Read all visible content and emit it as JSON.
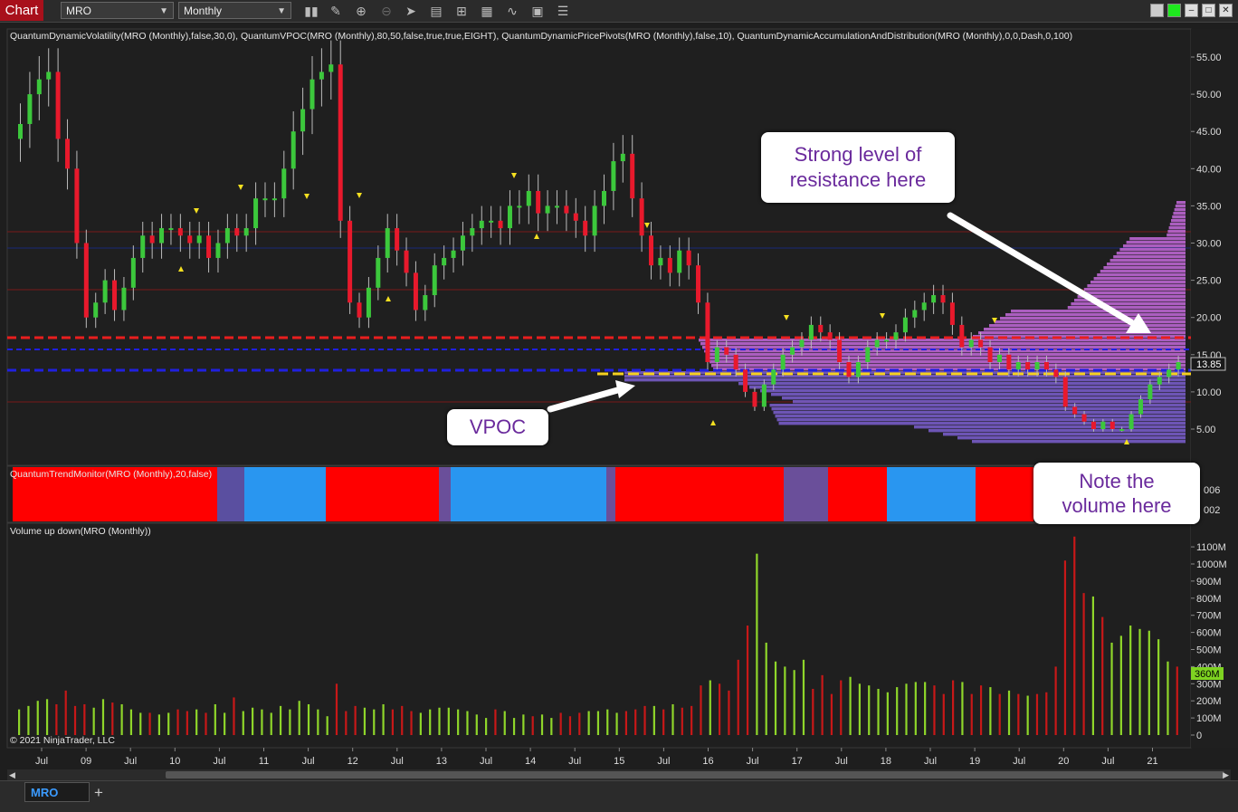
{
  "toolbar": {
    "chart_tab": "Chart",
    "instrument": "MRO",
    "period": "Monthly",
    "icons": [
      "bar-type-icon",
      "draw-pencil-icon",
      "zoom-in-icon",
      "zoom-out-icon",
      "pointer-icon",
      "data-box-icon",
      "properties-icon",
      "strategies-icon",
      "indicators-icon",
      "templates-icon",
      "list-icon"
    ]
  },
  "price_panel": {
    "indicator_label": "QuantumDynamicVolatility(MRO (Monthly),false,30,0), QuantumVPOC(MRO (Monthly),80,50,false,true,true,EIGHT), QuantumDynamicPricePivots(MRO (Monthly),false,10), QuantumDynamicAccumulationAndDistribution(MRO (Monthly),0,0,Dash,0,100)",
    "y_ticks": [
      "55.00",
      "50.00",
      "45.00",
      "40.00",
      "35.00",
      "30.00",
      "25.00",
      "20.00",
      "15.00",
      "10.00",
      "5.00"
    ],
    "y_values": [
      55,
      50,
      45,
      40,
      35,
      30,
      25,
      20,
      15,
      10,
      5
    ],
    "last_price": "13.85"
  },
  "trend_panel": {
    "label": "QuantumTrendMonitor(MRO (Monthly),20,false)",
    "y_ticks": [
      "006",
      "002"
    ]
  },
  "volume_panel": {
    "label": "Volume up down(MRO (Monthly))",
    "y_ticks": [
      "1100M",
      "1000M",
      "900M",
      "800M",
      "700M",
      "600M",
      "500M",
      "400M",
      "300M",
      "200M",
      "100M",
      "0"
    ],
    "last_volume": "360M",
    "copyright": "© 2021 NinjaTrader, LLC"
  },
  "x_axis": {
    "labels": [
      "Jul",
      "09",
      "Jul",
      "10",
      "Jul",
      "11",
      "Jul",
      "12",
      "Jul",
      "13",
      "Jul",
      "14",
      "Jul",
      "15",
      "Jul",
      "16",
      "Jul",
      "17",
      "Jul",
      "18",
      "Jul",
      "19",
      "Jul",
      "20",
      "Jul",
      "21"
    ]
  },
  "callouts": {
    "resistance_line1": "Strong level of",
    "resistance_line2": "resistance here",
    "vpoc": "VPOC",
    "volume_line1": "Note the",
    "volume_line2": "volume here"
  },
  "tabs": {
    "active": "MRO",
    "add": "+"
  },
  "colors": {
    "up_candle": "#3cc83c",
    "down_candle": "#e8192c",
    "volume_up": "#8fd62a",
    "volume_down": "#c81818",
    "trend_red": "#ff0000",
    "trend_blue": "#2996f0",
    "vpoc_line": "#f5d020",
    "resistance_line": "#e81e1e",
    "support_line": "#2020e0",
    "profile_magenta": "#c46adc",
    "profile_purple": "#7b5fd0",
    "callout_text": "#6a2a9c"
  },
  "chart_data": {
    "type": "candlestick",
    "symbol": "MRO",
    "period": "Monthly",
    "close": [
      46,
      50,
      52,
      53,
      44,
      40,
      30,
      20,
      22,
      25,
      21,
      24,
      28,
      31,
      30,
      32,
      32,
      31,
      30,
      31,
      28,
      30,
      32,
      31,
      32,
      36,
      36,
      36,
      40,
      45,
      48,
      52,
      53,
      54,
      33,
      22,
      20,
      24,
      28,
      32,
      29,
      26,
      21,
      23,
      27,
      28,
      29,
      31,
      32,
      33,
      33,
      32,
      35,
      35,
      37,
      34,
      35,
      35,
      34,
      33,
      31,
      35,
      37,
      41,
      42,
      36,
      31,
      27,
      28,
      26,
      29,
      27,
      22,
      14,
      16,
      15,
      13,
      10,
      8,
      11,
      13,
      15,
      16,
      17,
      19,
      18,
      17,
      14,
      12,
      14,
      16,
      17,
      17,
      18,
      20,
      21,
      22,
      23,
      22,
      19,
      16,
      17,
      16,
      14,
      15,
      13,
      14,
      13,
      14,
      13,
      12,
      8,
      7,
      6,
      5,
      6,
      5,
      5,
      7,
      9,
      11,
      12,
      13,
      14
    ]
  }
}
